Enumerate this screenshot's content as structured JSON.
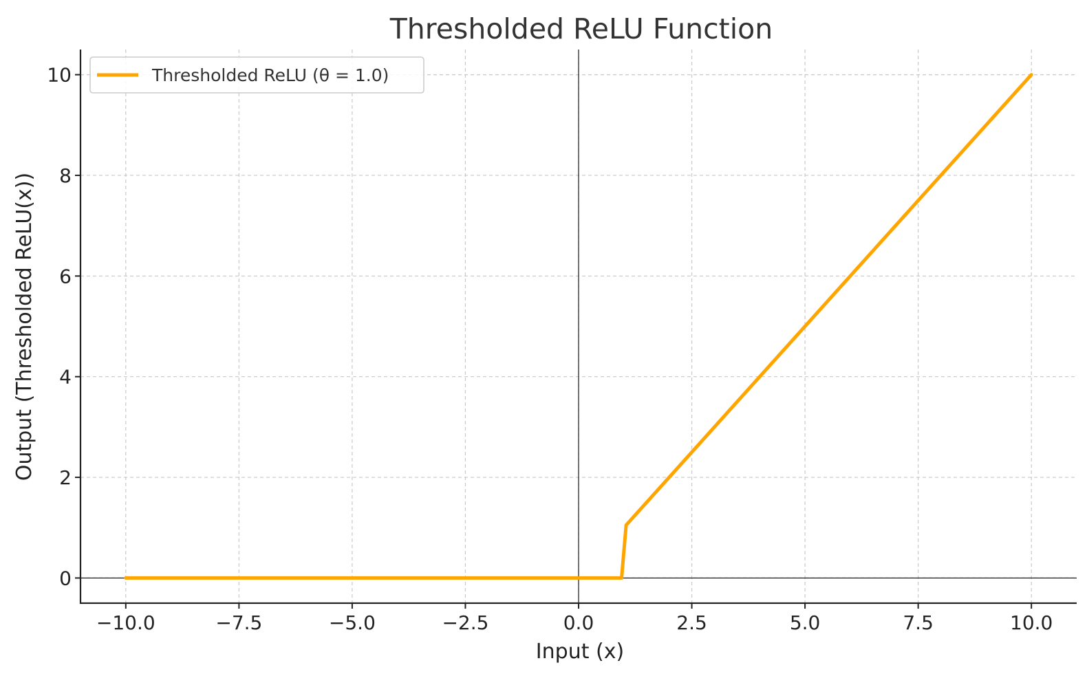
{
  "chart_data": {
    "type": "line",
    "title": "Thresholded ReLU Function",
    "xlabel": "Input (x)",
    "ylabel": "Output (Thresholded ReLU(x))",
    "xlim": [
      -11,
      11
    ],
    "ylim": [
      -0.5,
      10.5
    ],
    "grid": true,
    "legend_position": "top-left",
    "x_ticks": [
      -10,
      -7.5,
      -5,
      -2.5,
      0,
      2.5,
      5,
      7.5,
      10
    ],
    "x_tick_labels": [
      "−10.0",
      "−7.5",
      "−5.0",
      "−2.5",
      "0.0",
      "2.5",
      "5.0",
      "7.5",
      "10.0"
    ],
    "y_ticks": [
      0,
      2,
      4,
      6,
      8,
      10
    ],
    "y_tick_labels": [
      "0",
      "2",
      "4",
      "6",
      "8",
      "10"
    ],
    "reference_lines": {
      "x0": true,
      "y0": true,
      "color": "#000000"
    },
    "series": [
      {
        "name": "Thresholded ReLU (θ = 1.0)",
        "color": "#FFA500",
        "x": [
          -10,
          0.95,
          1.05,
          10
        ],
        "y": [
          0,
          0,
          1.05,
          10
        ]
      }
    ]
  }
}
